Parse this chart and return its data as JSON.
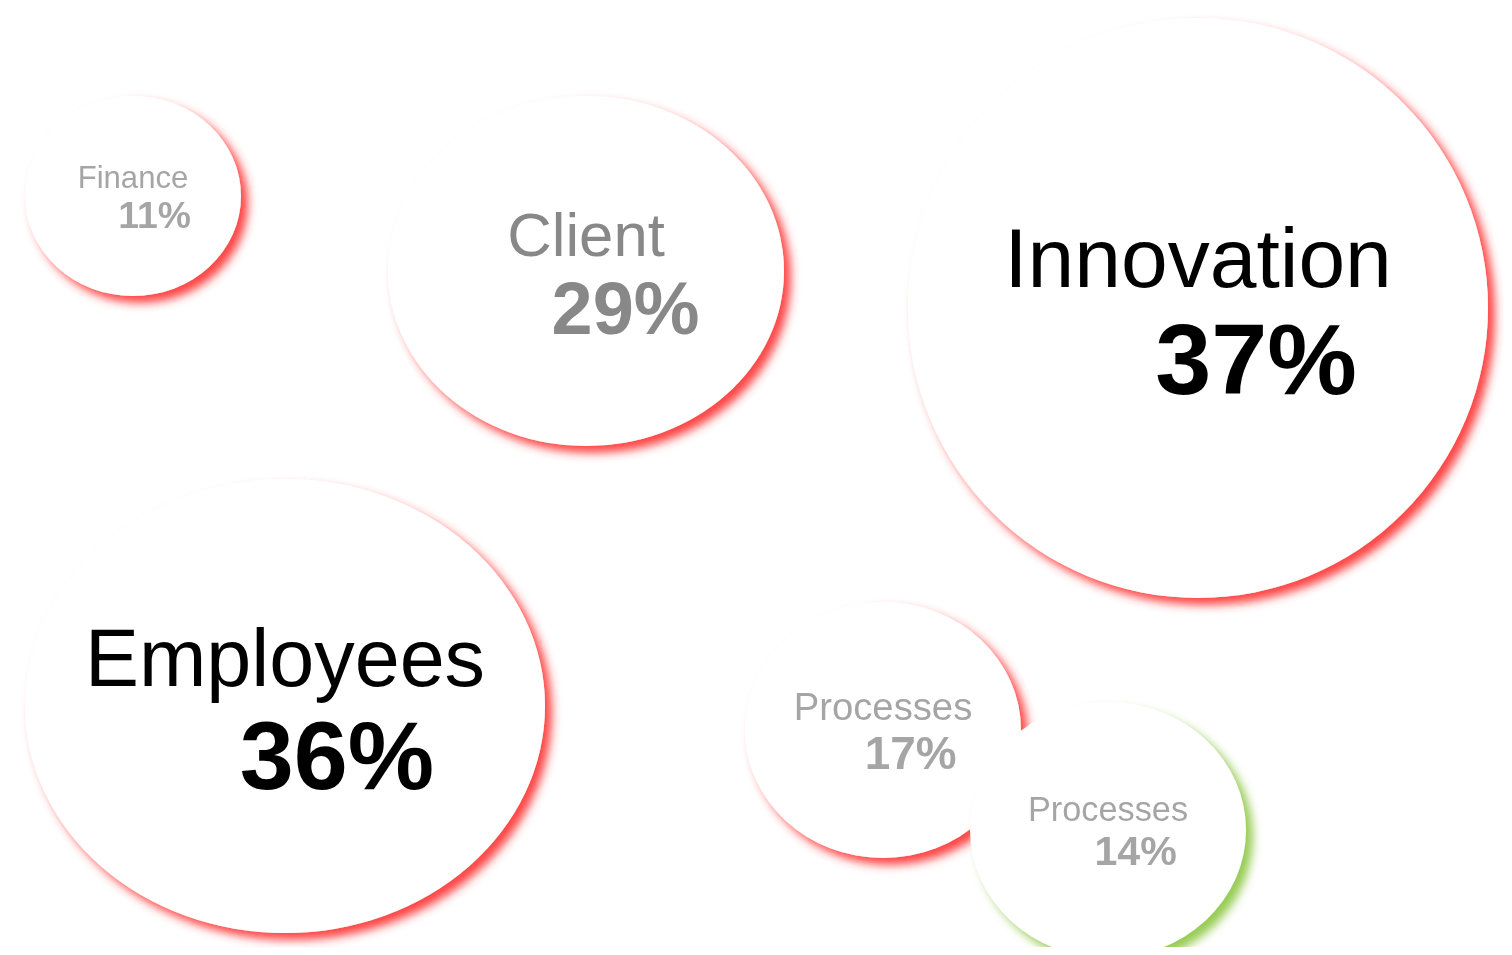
{
  "chart_data": {
    "type": "other",
    "categories": [
      "Finance",
      "Client",
      "Innovation",
      "Employees",
      "Processes",
      "Processes"
    ],
    "values": [
      11,
      29,
      37,
      36,
      17,
      14
    ],
    "value_labels": [
      "11%",
      "29%",
      "37%",
      "36%",
      "17%",
      "14%"
    ],
    "colors": [
      "#ff3333",
      "#ff3333",
      "#ff3333",
      "#ff3333",
      "#ff3333",
      "#8cc63f"
    ]
  }
}
